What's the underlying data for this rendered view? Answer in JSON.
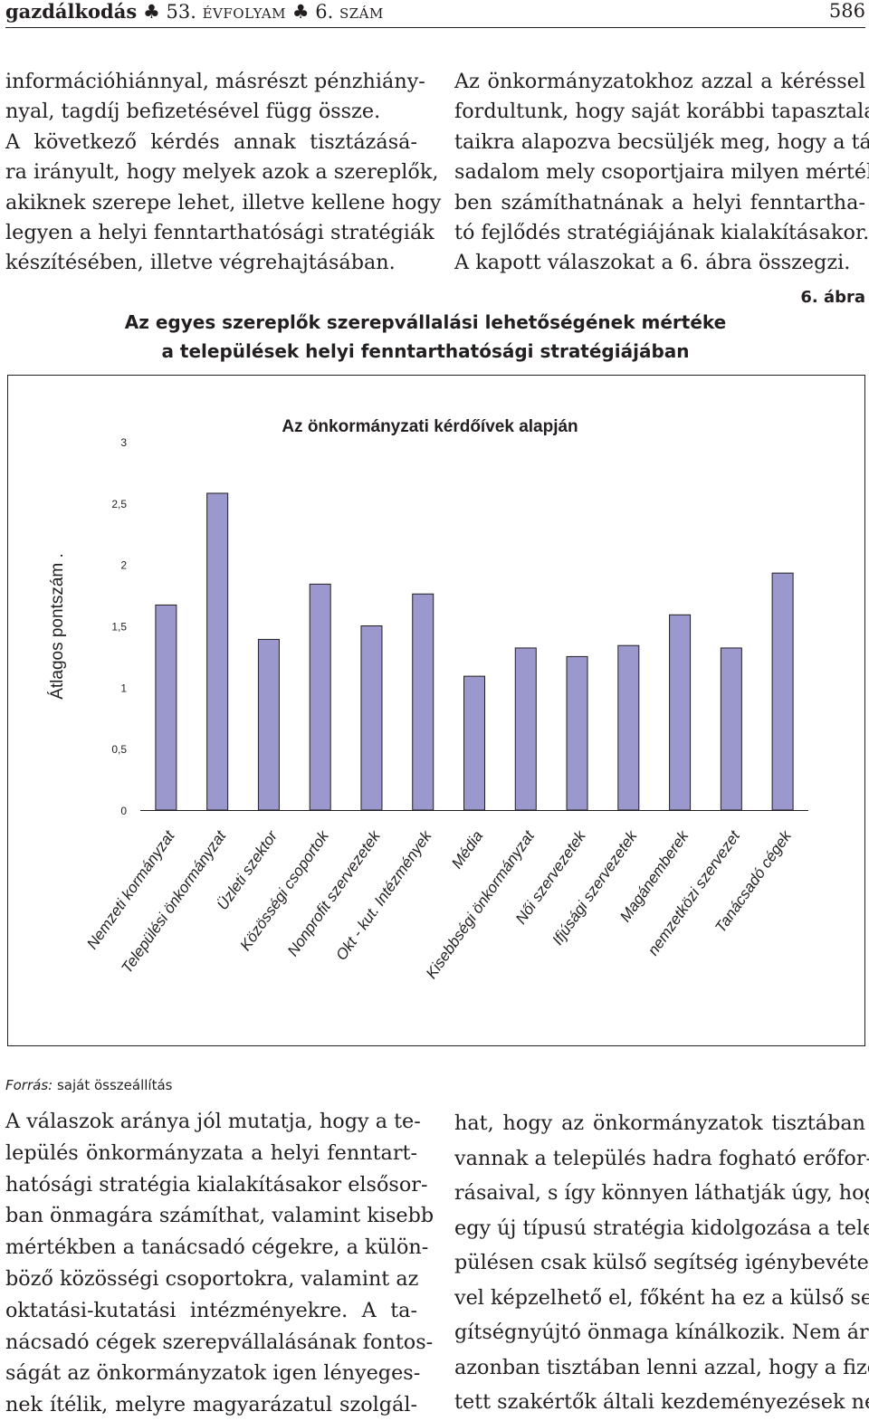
{
  "header": {
    "journal": "gazdálkodás",
    "club_symbol": "♣",
    "volume_num": "53.",
    "volume_word": "évfolyam",
    "issue_num": "6.",
    "issue_word": "szám",
    "page_number": "586"
  },
  "left_text_top": [
    "információhiánnyal, másrészt pénzhiány-",
    "nyal, tagdíj befizetésével függ össze.",
    "A következő kérdés annak tisztázásá-",
    "ra irányult, hogy melyek azok a szereplők,",
    "akiknek szerepe lehet, illetve kellene hogy",
    "legyen a helyi fenntarthatósági stratégiák",
    "készítésében, illetve végrehajtásában."
  ],
  "right_text_top": [
    "Az önkormányzatokhoz azzal a kéréssel",
    "fordultunk, hogy saját korábbi tapasztala-",
    "taikra alapozva becsüljék meg, hogy a tár-",
    "sadalom mely csoportjaira milyen mérték-",
    "ben számíthatnának a helyi fenntartha-",
    "tó fejlődés stratégiájának kialakításakor.",
    "A kapott válaszokat a 6. ábra összegzi."
  ],
  "figure": {
    "label": "6. ábra",
    "title_line1": "Az egyes szereplők szerepvállalási lehetőségének mértéke",
    "title_line2": "a települések helyi fenntarthatósági stratégiájában"
  },
  "chart_data": {
    "type": "bar",
    "title": "Az önkormányzati kérdőívek alapján",
    "xlabel": "",
    "ylabel": "Átlagos pontszám .",
    "ylim": [
      0,
      3
    ],
    "yticks": [
      0,
      0.5,
      1,
      1.5,
      2,
      2.5,
      3
    ],
    "ytick_labels": [
      "0",
      "0,5",
      "1",
      "1,5",
      "2",
      "2,5",
      "3"
    ],
    "categories": [
      "Nemzeti kormányzat",
      "Települési önkormányzat",
      "Üzleti szektor",
      "Közösségi csoportok",
      "Nonprofit szervezetek",
      "Okt - kut. Intézmények",
      "Média",
      "Kisebbségi önkormányzat",
      "Női szervezetek",
      "Ifjúsági szervezetek",
      "Magánemberek",
      "nemzetközi szervezet",
      "Tanácsadó cégek"
    ],
    "values": [
      1.67,
      2.58,
      1.39,
      1.84,
      1.5,
      1.76,
      1.09,
      1.32,
      1.25,
      1.34,
      1.59,
      1.32,
      1.93
    ],
    "bar_color": "#9a98cc",
    "grid": false,
    "legend": "none"
  },
  "source": {
    "label": "Forrás:",
    "text": "saját összeállítás"
  },
  "left_text_bottom": [
    "A válaszok aránya jól mutatja, hogy a te-",
    "lepülés önkormányzata a helyi fenntart-",
    "hatósági stratégia kialakításakor elsősor-",
    "ban önmagára számíthat, valamint kisebb",
    "mértékben a tanácsadó cégekre, a külön-",
    "böző közösségi csoportokra, valamint az",
    "oktatási-kutatási intézményekre. A ta-",
    "nácsadó cégek szerepvállalásának fontos-",
    "ságát az önkormányzatok igen lényeges-",
    "nek ítélik, melyre magyarázatul szolgál-"
  ],
  "right_text_bottom": [
    "hat, hogy az önkormányzatok tisztában",
    "vannak a település hadra fogható erőfor-",
    "rásaival, s így könnyen láthatják úgy, hogy",
    "egy új típusú stratégia kidolgozása a tele-",
    "pülésen csak külső segítség igénybevételé-",
    "vel képzelhető el, főként ha ez a külső se-",
    "gítségnyújtó önmaga kínálkozik. Nem árt",
    "azonban tisztában lenni azzal, hogy a fize-",
    "tett szakértők általi kezdeményezések nem"
  ]
}
